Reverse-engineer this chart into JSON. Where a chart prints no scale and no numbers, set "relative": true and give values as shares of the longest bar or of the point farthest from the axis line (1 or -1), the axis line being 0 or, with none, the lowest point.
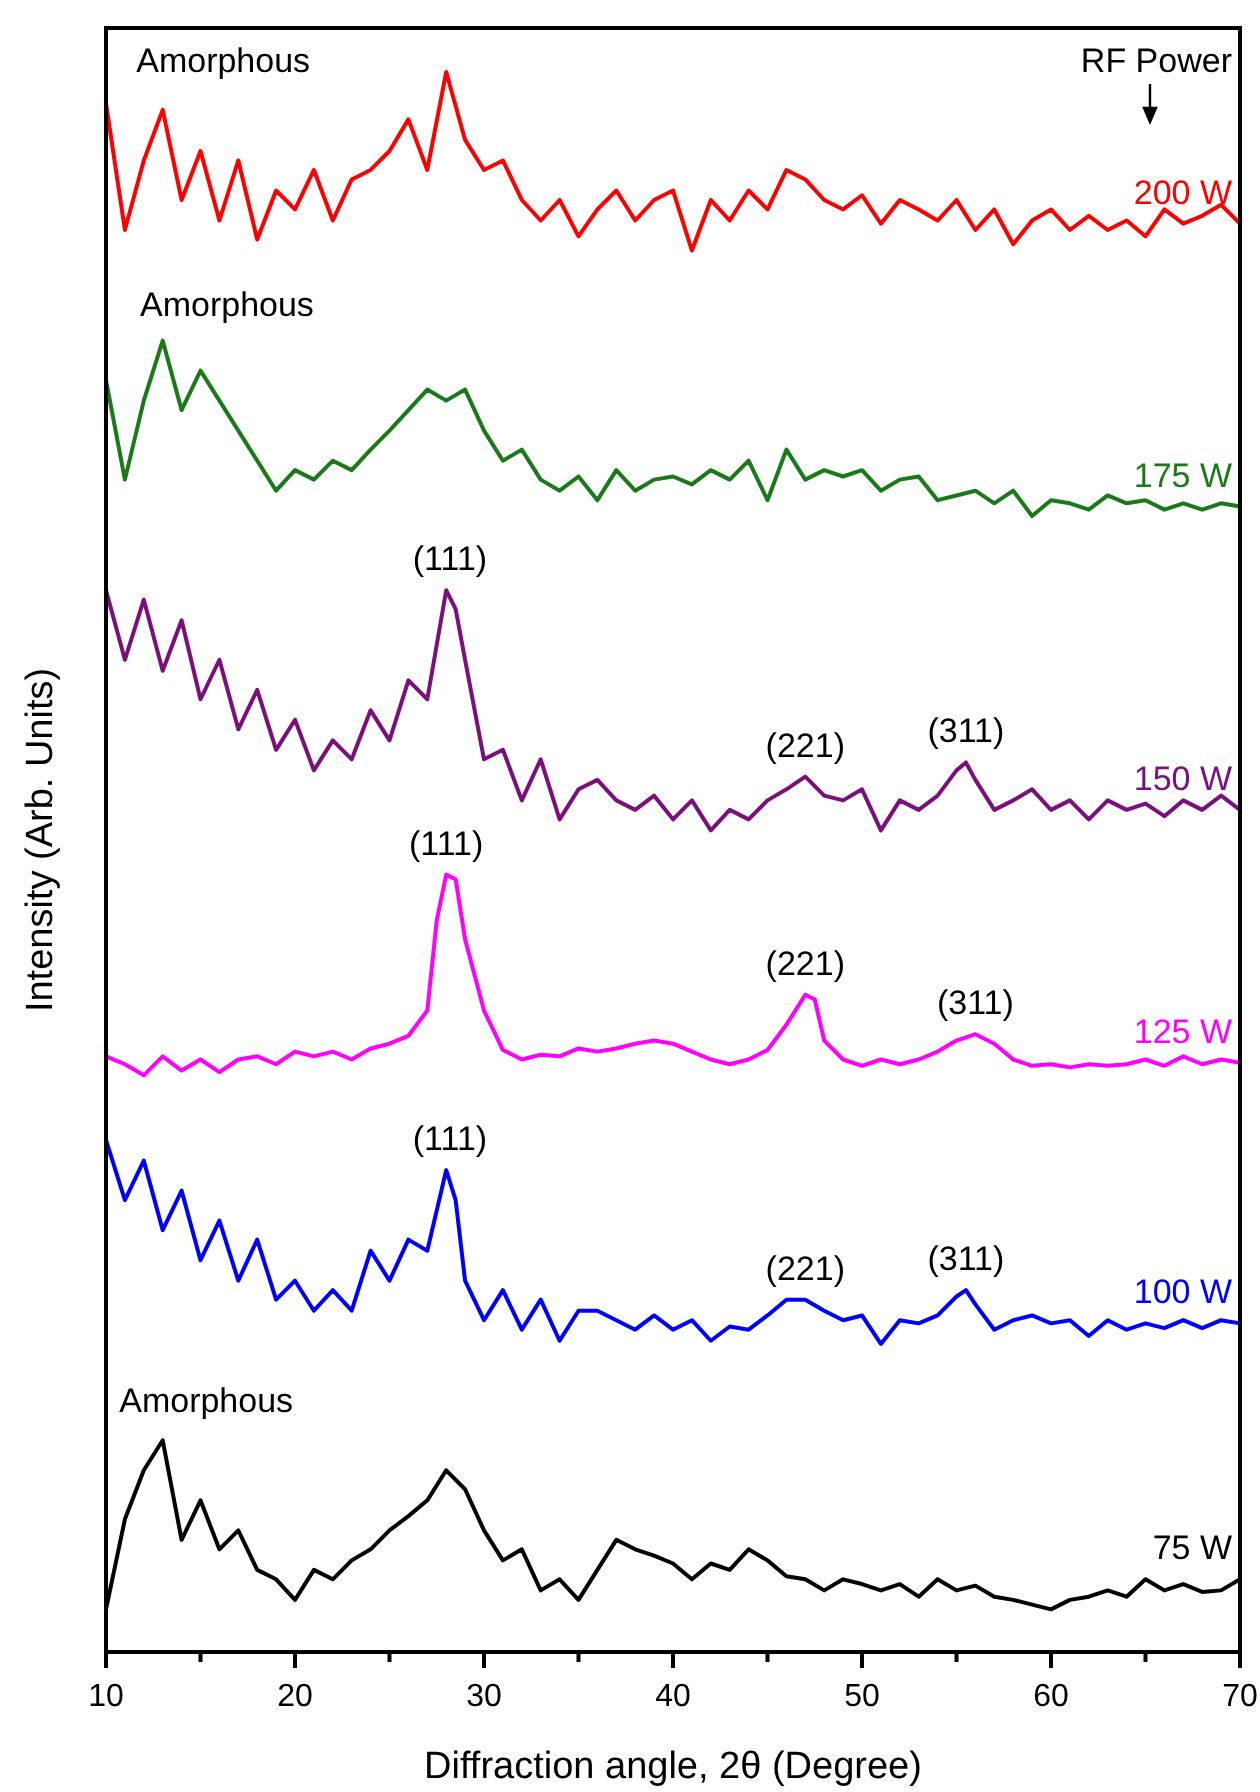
{
  "chart_data": {
    "type": "line",
    "relative": true,
    "xlabel": "Diffraction angle, 2θ (Degree)",
    "ylabel": "Intensity (Arb. Units)",
    "xlim": [
      10,
      70
    ],
    "xticks": [
      10,
      {
        "value": 15,
        "label": null
      },
      20,
      {
        "value": 25,
        "label": null
      },
      30,
      {
        "value": 35,
        "label": null
      },
      40,
      {
        "value": 45,
        "label": null
      },
      50,
      {
        "value": 55,
        "label": null
      },
      60,
      {
        "value": 65,
        "label": null
      },
      70
    ],
    "grid": false,
    "tick_labels": "x",
    "series": [
      {
        "name": "200 W",
        "color": "#ff0000",
        "x": [
          10,
          11,
          12,
          13,
          14,
          15,
          16,
          17,
          18,
          19,
          20,
          21,
          22,
          23,
          24,
          25,
          26,
          27,
          28,
          29,
          30,
          31,
          32,
          33,
          34,
          35,
          36,
          37,
          38,
          39,
          40,
          41,
          42,
          43,
          44,
          45,
          46,
          47,
          48,
          49,
          50,
          51,
          52,
          53,
          54,
          55,
          56,
          57,
          58,
          59,
          60,
          61,
          62,
          63,
          64,
          65,
          66,
          67,
          68,
          69,
          70
        ],
        "values": [
          0.98,
          0.9,
          0.944,
          0.976,
          0.919,
          0.95,
          0.906,
          0.944,
          0.894,
          0.925,
          0.913,
          0.938,
          0.906,
          0.932,
          0.938,
          0.95,
          0.97,
          0.938,
          1,
          0.957,
          0.938,
          0.944,
          0.919,
          0.906,
          0.919,
          0.896,
          0.913,
          0.925,
          0.906,
          0.919,
          0.925,
          0.887,
          0.919,
          0.906,
          0.925,
          0.913,
          0.938,
          0.932,
          0.919,
          0.913,
          0.922,
          0.904,
          0.919,
          0.913,
          0.906,
          0.919,
          0.9,
          0.913,
          0.891,
          0.906,
          0.913,
          0.9,
          0.909,
          0.9,
          0.906,
          0.896,
          0.913,
          0.904,
          0.909,
          0.916,
          0.904
        ]
      },
      {
        "name": "175 W",
        "color": "#1a7a1a",
        "x": [
          10,
          11,
          12,
          13,
          14,
          15,
          16,
          17,
          18,
          19,
          20,
          21,
          22,
          23,
          24,
          25,
          26,
          27,
          28,
          29,
          30,
          31,
          32,
          33,
          34,
          35,
          36,
          37,
          38,
          39,
          40,
          41,
          42,
          43,
          44,
          45,
          46,
          47,
          48,
          49,
          50,
          51,
          52,
          53,
          54,
          55,
          56,
          57,
          58,
          59,
          60,
          61,
          62,
          63,
          64,
          65,
          66,
          67,
          68,
          69,
          70
        ],
        "values": [
          0.805,
          0.742,
          0.792,
          0.83,
          0.786,
          0.811,
          0.792,
          0.773,
          0.754,
          0.735,
          0.748,
          0.742,
          0.754,
          0.748,
          0.761,
          0.773,
          0.786,
          0.799,
          0.792,
          0.799,
          0.773,
          0.754,
          0.761,
          0.742,
          0.735,
          0.744,
          0.729,
          0.748,
          0.735,
          0.742,
          0.744,
          0.739,
          0.748,
          0.742,
          0.754,
          0.729,
          0.761,
          0.742,
          0.748,
          0.744,
          0.748,
          0.735,
          0.742,
          0.744,
          0.729,
          0.732,
          0.735,
          0.727,
          0.735,
          0.719,
          0.729,
          0.727,
          0.723,
          0.732,
          0.727,
          0.729,
          0.723,
          0.727,
          0.723,
          0.727,
          0.725
        ]
      },
      {
        "name": "150 W",
        "color": "#7b0f7b",
        "x": [
          10,
          11,
          12,
          13,
          14,
          15,
          16,
          17,
          18,
          19,
          20,
          21,
          22,
          23,
          24,
          25,
          26,
          27,
          28,
          28.5,
          29,
          30,
          31,
          32,
          33,
          34,
          35,
          36,
          37,
          38,
          39,
          40,
          41,
          42,
          43,
          44,
          45,
          46,
          47,
          48,
          49,
          50,
          51,
          52,
          53,
          54,
          55,
          55.5,
          56,
          57,
          58,
          59,
          60,
          61,
          62,
          63,
          64,
          65,
          66,
          67,
          68,
          69,
          70
        ],
        "values": [
          0.672,
          0.628,
          0.666,
          0.621,
          0.653,
          0.603,
          0.628,
          0.584,
          0.609,
          0.571,
          0.59,
          0.558,
          0.577,
          0.565,
          0.596,
          0.577,
          0.615,
          0.603,
          0.672,
          0.66,
          0.628,
          0.565,
          0.571,
          0.539,
          0.565,
          0.527,
          0.546,
          0.552,
          0.539,
          0.533,
          0.542,
          0.527,
          0.539,
          0.52,
          0.533,
          0.527,
          0.539,
          0.546,
          0.554,
          0.542,
          0.539,
          0.546,
          0.52,
          0.539,
          0.533,
          0.542,
          0.558,
          0.563,
          0.552,
          0.533,
          0.539,
          0.546,
          0.533,
          0.539,
          0.527,
          0.539,
          0.533,
          0.537,
          0.529,
          0.539,
          0.533,
          0.542,
          0.533
        ]
      },
      {
        "name": "125 W",
        "color": "#ff00ff",
        "x": [
          10,
          11,
          12,
          13,
          14,
          15,
          16,
          17,
          18,
          19,
          20,
          21,
          22,
          23,
          24,
          25,
          26,
          27,
          27.5,
          28,
          28.5,
          29,
          30,
          31,
          32,
          33,
          34,
          35,
          36,
          37,
          38,
          39,
          40,
          41,
          42,
          43,
          44,
          45,
          46,
          47,
          47.5,
          48,
          49,
          50,
          51,
          52,
          53,
          54,
          55,
          56,
          57,
          58,
          59,
          60,
          61,
          62,
          63,
          64,
          65,
          66,
          67,
          68,
          69,
          70
        ],
        "values": [
          0.377,
          0.372,
          0.365,
          0.377,
          0.368,
          0.375,
          0.367,
          0.375,
          0.377,
          0.372,
          0.38,
          0.377,
          0.38,
          0.375,
          0.382,
          0.385,
          0.39,
          0.406,
          0.463,
          0.492,
          0.489,
          0.451,
          0.406,
          0.381,
          0.375,
          0.378,
          0.377,
          0.382,
          0.38,
          0.382,
          0.385,
          0.387,
          0.385,
          0.38,
          0.375,
          0.372,
          0.375,
          0.381,
          0.397,
          0.416,
          0.413,
          0.387,
          0.375,
          0.371,
          0.375,
          0.372,
          0.375,
          0.38,
          0.387,
          0.391,
          0.385,
          0.375,
          0.371,
          0.372,
          0.37,
          0.372,
          0.371,
          0.372,
          0.375,
          0.371,
          0.377,
          0.372,
          0.375,
          0.373
        ]
      },
      {
        "name": "100 W",
        "color": "#0000ff",
        "x": [
          10,
          11,
          12,
          13,
          14,
          15,
          16,
          17,
          18,
          19,
          20,
          21,
          22,
          23,
          24,
          25,
          26,
          27,
          28,
          28.5,
          29,
          30,
          31,
          32,
          33,
          34,
          35,
          36,
          37,
          38,
          39,
          40,
          41,
          42,
          43,
          44,
          45,
          46,
          47,
          48,
          49,
          50,
          51,
          52,
          53,
          54,
          55,
          55.5,
          56,
          57,
          58,
          59,
          60,
          61,
          62,
          63,
          64,
          65,
          66,
          67,
          68,
          69,
          70
        ],
        "values": [
          0.324,
          0.286,
          0.311,
          0.267,
          0.292,
          0.248,
          0.273,
          0.235,
          0.261,
          0.223,
          0.235,
          0.216,
          0.229,
          0.216,
          0.254,
          0.235,
          0.261,
          0.254,
          0.305,
          0.286,
          0.235,
          0.21,
          0.229,
          0.204,
          0.223,
          0.197,
          0.216,
          0.216,
          0.21,
          0.204,
          0.213,
          0.204,
          0.21,
          0.197,
          0.206,
          0.204,
          0.213,
          0.223,
          0.223,
          0.216,
          0.21,
          0.213,
          0.195,
          0.21,
          0.208,
          0.213,
          0.225,
          0.229,
          0.22,
          0.204,
          0.21,
          0.213,
          0.208,
          0.21,
          0.2,
          0.21,
          0.204,
          0.208,
          0.205,
          0.21,
          0.205,
          0.21,
          0.208
        ]
      },
      {
        "name": "75 W",
        "color": "#000000",
        "x": [
          10,
          11,
          12,
          13,
          14,
          15,
          16,
          17,
          18,
          19,
          20,
          21,
          22,
          23,
          24,
          25,
          26,
          27,
          28,
          29,
          30,
          31,
          32,
          33,
          34,
          35,
          36,
          37,
          38,
          39,
          40,
          41,
          42,
          43,
          44,
          45,
          46,
          47,
          48,
          49,
          50,
          51,
          52,
          53,
          54,
          55,
          56,
          57,
          58,
          59,
          60,
          61,
          62,
          63,
          64,
          65,
          66,
          67,
          68,
          69,
          70
        ],
        "values": [
          0.027,
          0.084,
          0.115,
          0.134,
          0.071,
          0.096,
          0.065,
          0.077,
          0.052,
          0.046,
          0.033,
          0.052,
          0.046,
          0.058,
          0.065,
          0.077,
          0.086,
          0.096,
          0.115,
          0.103,
          0.077,
          0.058,
          0.065,
          0.039,
          0.046,
          0.033,
          0.052,
          0.071,
          0.065,
          0.061,
          0.056,
          0.046,
          0.056,
          0.052,
          0.065,
          0.058,
          0.048,
          0.046,
          0.039,
          0.046,
          0.043,
          0.039,
          0.043,
          0.035,
          0.046,
          0.039,
          0.042,
          0.035,
          0.033,
          0.03,
          0.027,
          0.033,
          0.035,
          0.039,
          0.035,
          0.046,
          0.039,
          0.043,
          0.038,
          0.039,
          0.046
        ]
      }
    ],
    "annotations": [
      {
        "text": "(111)",
        "x": 28.2,
        "y": 0.672
      },
      {
        "text": "(221)",
        "x": 47,
        "y": 0.554
      },
      {
        "text": "(311)",
        "x": 55.5,
        "y": 0.563
      },
      {
        "text": "(111)",
        "x": 28,
        "y": 0.492
      },
      {
        "text": "(221)",
        "x": 47,
        "y": 0.416
      },
      {
        "text": "(311)",
        "x": 56,
        "y": 0.391
      },
      {
        "text": "(111)",
        "x": 28.2,
        "y": 0.305
      },
      {
        "text": "(221)",
        "x": 47,
        "y": 0.223
      },
      {
        "text": "(311)",
        "x": 55.5,
        "y": 0.229
      },
      "Amorphous",
      "Amorphous",
      "Amorphous",
      "RF Power"
    ]
  }
}
